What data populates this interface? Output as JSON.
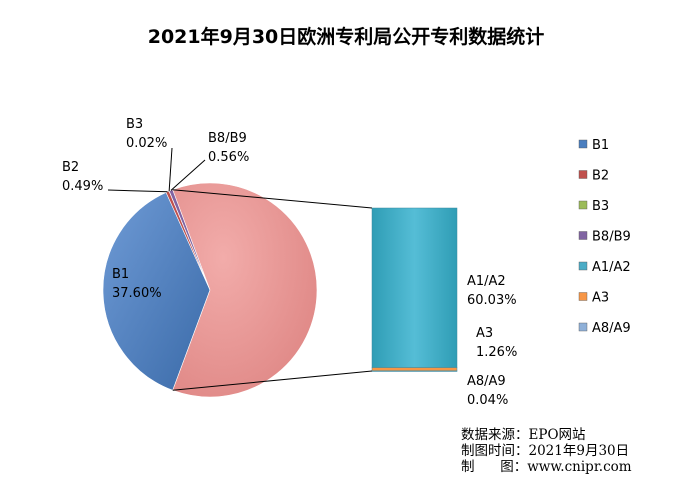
{
  "chart_data": {
    "type": "pie",
    "subtype": "bar-of-pie",
    "title": "2021年9月30日欧洲专利局公开专利数据统计",
    "slices": [
      {
        "name": "B1",
        "value": 37.6,
        "label": "37.60%",
        "color": "#4a7ebf"
      },
      {
        "name": "B2",
        "value": 0.49,
        "label": "0.49%",
        "color": "#c0504d"
      },
      {
        "name": "B3",
        "value": 0.02,
        "label": "0.02%",
        "color": "#9bbb59"
      },
      {
        "name": "B8/B9",
        "value": 0.56,
        "label": "0.56%",
        "color": "#8064a2"
      },
      {
        "name": "A1/A2",
        "value": 60.03,
        "label": "60.03%",
        "color": "#4bacc6"
      },
      {
        "name": "A3",
        "value": 1.26,
        "label": "1.26%",
        "color": "#f79646"
      },
      {
        "name": "A8/A9",
        "value": 0.04,
        "label": "0.04%",
        "color": "#8fb0d8"
      }
    ],
    "pie_slices": [
      "B1",
      "B2",
      "B3",
      "B8/B9"
    ],
    "bar_slices": [
      "A1/A2",
      "A3",
      "A8/A9"
    ],
    "combined_color": "#e8908e",
    "legend_position": "right"
  },
  "source": {
    "line1": "数据来源：EPO网站",
    "line2": "制图时间：2021年9月30日",
    "line3": "制      图：www.cnipr.com"
  }
}
